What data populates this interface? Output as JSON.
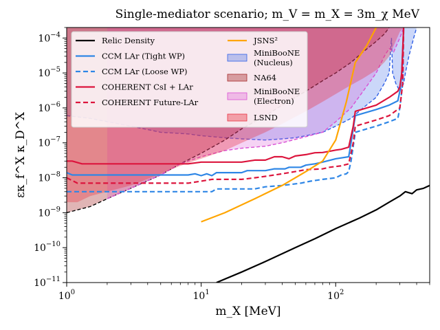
{
  "chart_data": {
    "type": "line",
    "title": "Single-mediator scenario; m_V = m_X = 3m_χ MeV",
    "xlabel": "m_X [MeV]",
    "ylabel": "εκ_f^X κ_D^X",
    "x_scale": "log",
    "y_scale": "log",
    "xlim": [
      1,
      500
    ],
    "ylim": [
      1e-11,
      0.0002
    ],
    "x_ticks": [
      {
        "value": 1,
        "label": "10^0"
      },
      {
        "value": 10,
        "label": "10^1"
      },
      {
        "value": 100,
        "label": "10^2"
      }
    ],
    "y_ticks": [
      {
        "value": 1e-11,
        "label": "10^-11"
      },
      {
        "value": 1e-10,
        "label": "10^-10"
      },
      {
        "value": 1e-09,
        "label": "10^-9"
      },
      {
        "value": 1e-08,
        "label": "10^-8"
      },
      {
        "value": 1e-07,
        "label": "10^-7"
      },
      {
        "value": 1e-06,
        "label": "10^-6"
      },
      {
        "value": 1e-05,
        "label": "10^-5"
      },
      {
        "value": 0.0001,
        "label": "10^-4"
      }
    ],
    "legend_position": "top-left",
    "series": [
      {
        "name": "Relic Density",
        "kind": "line",
        "color": "#000000",
        "dash": "solid",
        "width": 2.2,
        "points": [
          [
            13,
            1e-11
          ],
          [
            20,
            2e-11
          ],
          [
            30,
            4e-11
          ],
          [
            50,
            1e-10
          ],
          [
            70,
            1.8e-10
          ],
          [
            100,
            3.5e-10
          ],
          [
            150,
            7e-10
          ],
          [
            200,
            1.2e-09
          ],
          [
            250,
            2e-09
          ],
          [
            300,
            3e-09
          ],
          [
            330,
            4e-09
          ],
          [
            370,
            3.5e-09
          ],
          [
            400,
            4.5e-09
          ],
          [
            450,
            5e-09
          ],
          [
            500,
            6e-09
          ]
        ]
      },
      {
        "name": "CCM LAr (Tight WP)",
        "kind": "line",
        "color": "#2e86e6",
        "dash": "solid",
        "width": 2.2,
        "points": [
          [
            1,
            1.4e-08
          ],
          [
            1.1,
            1.2e-08
          ],
          [
            2,
            1.2e-08
          ],
          [
            4,
            1.2e-08
          ],
          [
            8,
            1.2e-08
          ],
          [
            9,
            1.3e-08
          ],
          [
            10,
            1.15e-08
          ],
          [
            11,
            1.3e-08
          ],
          [
            12,
            1.15e-08
          ],
          [
            13,
            1.4e-08
          ],
          [
            20,
            1.4e-08
          ],
          [
            22,
            1.6e-08
          ],
          [
            30,
            1.6e-08
          ],
          [
            35,
            1.8e-08
          ],
          [
            42,
            1.8e-08
          ],
          [
            45,
            2e-08
          ],
          [
            55,
            2e-08
          ],
          [
            60,
            2.3e-08
          ],
          [
            70,
            2.5e-08
          ],
          [
            80,
            2.8e-08
          ],
          [
            100,
            3.5e-08
          ],
          [
            125,
            4e-08
          ],
          [
            130,
            1e-07
          ],
          [
            140,
            6e-07
          ],
          [
            200,
            9e-07
          ],
          [
            250,
            1.2e-06
          ],
          [
            290,
            1.6e-06
          ],
          [
            300,
            3e-06
          ],
          [
            310,
            1e-05
          ],
          [
            320,
            0.0002
          ]
        ]
      },
      {
        "name": "CCM LAr (Loose WP)",
        "kind": "line",
        "color": "#2e86e6",
        "dash": "dashed",
        "width": 2.2,
        "points": [
          [
            1,
            4e-09
          ],
          [
            8,
            4e-09
          ],
          [
            10,
            4e-09
          ],
          [
            12,
            4e-09
          ],
          [
            13,
            4.8e-09
          ],
          [
            25,
            4.8e-09
          ],
          [
            30,
            5.5e-09
          ],
          [
            40,
            6e-09
          ],
          [
            55,
            7e-09
          ],
          [
            65,
            8e-09
          ],
          [
            80,
            9e-09
          ],
          [
            100,
            1e-08
          ],
          [
            110,
            1.2e-08
          ],
          [
            120,
            1.3e-08
          ],
          [
            125,
            1.5e-08
          ],
          [
            130,
            3e-08
          ],
          [
            140,
            2e-07
          ],
          [
            200,
            3e-07
          ],
          [
            250,
            4e-07
          ],
          [
            290,
            5e-07
          ],
          [
            300,
            1e-06
          ],
          [
            315,
            5e-06
          ],
          [
            320,
            0.0002
          ]
        ]
      },
      {
        "name": "COHERENT CsI + LAr",
        "kind": "line",
        "color": "#dc143c",
        "dash": "solid",
        "width": 2.2,
        "points": [
          [
            1,
            3e-08
          ],
          [
            1.1,
            3e-08
          ],
          [
            1.3,
            2.5e-08
          ],
          [
            2,
            2.5e-08
          ],
          [
            4,
            2.5e-08
          ],
          [
            8,
            2.5e-08
          ],
          [
            10,
            2.8e-08
          ],
          [
            20,
            2.8e-08
          ],
          [
            25,
            3.2e-08
          ],
          [
            30,
            3.2e-08
          ],
          [
            35,
            4e-08
          ],
          [
            40,
            4e-08
          ],
          [
            45,
            3.5e-08
          ],
          [
            50,
            4.2e-08
          ],
          [
            60,
            4.6e-08
          ],
          [
            70,
            5.2e-08
          ],
          [
            80,
            5.3e-08
          ],
          [
            90,
            5.7e-08
          ],
          [
            100,
            6.2e-08
          ],
          [
            110,
            6.5e-08
          ],
          [
            125,
            7.5e-08
          ],
          [
            135,
            3e-07
          ],
          [
            140,
            8e-07
          ],
          [
            200,
            1.2e-06
          ],
          [
            250,
            2e-06
          ],
          [
            290,
            3e-06
          ],
          [
            300,
            4e-06
          ],
          [
            310,
            1e-05
          ],
          [
            320,
            0.0002
          ]
        ]
      },
      {
        "name": "COHERENT Future-LAr",
        "kind": "line",
        "color": "#dc143c",
        "dash": "dashed",
        "width": 2.2,
        "points": [
          [
            1,
            1e-08
          ],
          [
            1.2,
            7e-09
          ],
          [
            2,
            7e-09
          ],
          [
            4,
            7e-09
          ],
          [
            8,
            7e-09
          ],
          [
            10,
            8e-09
          ],
          [
            12,
            9e-09
          ],
          [
            20,
            9e-09
          ],
          [
            25,
            1e-08
          ],
          [
            30,
            1.1e-08
          ],
          [
            40,
            1.3e-08
          ],
          [
            50,
            1.5e-08
          ],
          [
            60,
            1.7e-08
          ],
          [
            80,
            1.8e-08
          ],
          [
            90,
            2e-08
          ],
          [
            110,
            2.2e-08
          ],
          [
            125,
            2.5e-08
          ],
          [
            135,
            1e-07
          ],
          [
            140,
            3e-07
          ],
          [
            200,
            4.5e-07
          ],
          [
            250,
            6e-07
          ],
          [
            300,
            1e-06
          ],
          [
            315,
            5e-06
          ],
          [
            320,
            0.0002
          ]
        ]
      },
      {
        "name": "JSNS^2",
        "kind": "line",
        "color": "#ffa500",
        "dash": "solid",
        "width": 2.2,
        "points": [
          [
            10,
            5.5e-10
          ],
          [
            15,
            1e-09
          ],
          [
            25,
            2.5e-09
          ],
          [
            40,
            6e-09
          ],
          [
            60,
            1.5e-08
          ],
          [
            80,
            3e-08
          ],
          [
            100,
            1.2e-07
          ],
          [
            120,
            1.5e-06
          ],
          [
            140,
            2e-05
          ],
          [
            170,
            6e-05
          ],
          [
            200,
            0.0002
          ]
        ]
      },
      {
        "name": "MiniBooNE (Nucleus)",
        "kind": "region",
        "color": "#2e5fe6",
        "opacity": 0.25,
        "edge": "#2e5fe6",
        "edge_dash": "dashed",
        "points": [
          [
            1,
            6e-07
          ],
          [
            1.5,
            5e-07
          ],
          [
            3,
            3e-07
          ],
          [
            5,
            2e-07
          ],
          [
            8,
            1.8e-07
          ],
          [
            10,
            1.6e-07
          ],
          [
            15,
            1.4e-07
          ],
          [
            20,
            1.3e-07
          ],
          [
            30,
            1.2e-07
          ],
          [
            40,
            1.3e-07
          ],
          [
            50,
            1.4e-07
          ],
          [
            60,
            1.6e-07
          ],
          [
            80,
            2e-07
          ],
          [
            100,
            3e-07
          ],
          [
            130,
            5e-07
          ],
          [
            160,
            1e-06
          ],
          [
            200,
            2e-06
          ],
          [
            230,
            5e-06
          ],
          [
            250,
            1e-05
          ],
          [
            260,
            0.0001
          ],
          [
            265,
            1e-05
          ],
          [
            280,
            5e-06
          ],
          [
            300,
            3e-06
          ],
          [
            320,
            5e-06
          ],
          [
            330,
            1e-05
          ],
          [
            350,
            3e-05
          ],
          [
            380,
            0.0001
          ],
          [
            400,
            0.0002
          ]
        ]
      },
      {
        "name": "NA64",
        "kind": "region",
        "color": "#a52a2a",
        "opacity": 0.35,
        "edge": "#000000",
        "edge_dash": "dashed",
        "points": [
          [
            1,
            1e-09
          ],
          [
            1.5,
            1.5e-09
          ],
          [
            2,
            2.5e-09
          ],
          [
            3,
            5e-09
          ],
          [
            5,
            1.2e-08
          ],
          [
            7,
            2.5e-08
          ],
          [
            10,
            5e-08
          ],
          [
            15,
            1.2e-07
          ],
          [
            20,
            2.5e-07
          ],
          [
            30,
            6e-07
          ],
          [
            40,
            1.2e-06
          ],
          [
            60,
            3e-06
          ],
          [
            80,
            6e-06
          ],
          [
            100,
            1e-05
          ],
          [
            130,
            2e-05
          ],
          [
            160,
            4e-05
          ],
          [
            200,
            8e-05
          ],
          [
            230,
            0.00013
          ],
          [
            250,
            0.0002
          ]
        ]
      },
      {
        "name": "MiniBooNE (Electron)",
        "kind": "region",
        "color": "#d94fd4",
        "opacity": 0.25,
        "edge": "#d94fd4",
        "edge_dash": "dashed",
        "points": [
          [
            2,
            2.5e-09
          ],
          [
            3,
            5e-09
          ],
          [
            5,
            1.2e-08
          ],
          [
            7,
            2.5e-08
          ],
          [
            10,
            4e-08
          ],
          [
            15,
            6e-08
          ],
          [
            20,
            7e-08
          ],
          [
            30,
            8e-08
          ],
          [
            40,
            1e-07
          ],
          [
            60,
            1.5e-07
          ],
          [
            80,
            2e-07
          ],
          [
            100,
            4e-07
          ],
          [
            130,
            1e-06
          ],
          [
            160,
            3e-06
          ],
          [
            200,
            1e-05
          ],
          [
            230,
            3e-05
          ],
          [
            250,
            5e-05
          ],
          [
            270,
            4e-05
          ],
          [
            300,
            0.0001
          ],
          [
            320,
            0.0002
          ]
        ]
      },
      {
        "name": "LSND",
        "kind": "region",
        "color": "#e8313f",
        "opacity": 0.35,
        "edge": "none",
        "edge_dash": "none",
        "points": [
          [
            1,
            2e-09
          ],
          [
            1.2,
            2e-09
          ],
          [
            1.5,
            3e-09
          ],
          [
            2,
            4e-09
          ],
          [
            3,
            6e-09
          ],
          [
            5,
            1.3e-08
          ],
          [
            7,
            2.2e-08
          ],
          [
            10,
            3.5e-08
          ],
          [
            15,
            6e-08
          ],
          [
            20,
            1e-07
          ],
          [
            30,
            2e-07
          ],
          [
            40,
            3.5e-07
          ],
          [
            60,
            8e-07
          ],
          [
            80,
            1.5e-06
          ],
          [
            100,
            2.5e-06
          ],
          [
            130,
            4.5e-06
          ],
          [
            160,
            7e-06
          ],
          [
            200,
            1.2e-05
          ],
          [
            230,
            2e-05
          ],
          [
            250,
            3e-05
          ],
          [
            270,
            6e-05
          ],
          [
            300,
            0.00015
          ],
          [
            320,
            0.0002
          ]
        ]
      }
    ],
    "legend": [
      {
        "label": "Relic Density",
        "swatch": "line",
        "color": "#000000",
        "dash": "solid"
      },
      {
        "label": "CCM LAr (Tight WP)",
        "swatch": "line",
        "color": "#2e86e6",
        "dash": "solid"
      },
      {
        "label": "CCM LAr (Loose WP)",
        "swatch": "line",
        "color": "#2e86e6",
        "dash": "dashed"
      },
      {
        "label": "COHERENT CsI + LAr",
        "swatch": "line",
        "color": "#dc143c",
        "dash": "solid"
      },
      {
        "label": "COHERENT Future-LAr",
        "swatch": "line",
        "color": "#dc143c",
        "dash": "dashed"
      },
      {
        "label": "JSNS²",
        "swatch": "line",
        "color": "#ffa500",
        "dash": "solid"
      },
      {
        "label": "MiniBooNE (Nucleus)",
        "swatch": "patch",
        "color": "#2e5fe6",
        "opacity": 0.3
      },
      {
        "label": "NA64",
        "swatch": "patch",
        "color": "#a52a2a",
        "opacity": 0.4
      },
      {
        "label": "MiniBooNE (Electron)",
        "swatch": "patch",
        "color": "#d94fd4",
        "opacity": 0.3
      },
      {
        "label": "LSND",
        "swatch": "patch",
        "color": "#e8313f",
        "opacity": 0.4
      }
    ],
    "grid": false
  }
}
